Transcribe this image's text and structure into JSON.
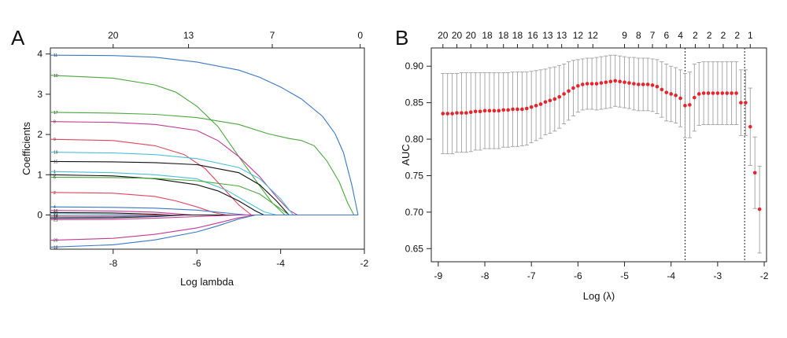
{
  "chart_data": [
    {
      "type": "line",
      "panel_label": "A",
      "xlabel": "Log lambda",
      "ylabel": "Coefficients",
      "xlim": [
        -9.5,
        -2.0
      ],
      "ylim": [
        -0.85,
        4.15
      ],
      "x_ticks": [
        -8,
        -6,
        -4,
        -2
      ],
      "y_ticks": [
        0,
        1,
        2,
        3,
        4
      ],
      "top_axis": {
        "positions": [
          -8,
          -6.2,
          -4.2,
          -2.1
        ],
        "labels": [
          "20",
          "13",
          "7",
          "0"
        ]
      },
      "grid": false,
      "legend": "none",
      "series": [
        {
          "name": "11",
          "color": "#3a78c5",
          "x": [
            -9.5,
            -8,
            -7,
            -6,
            -5,
            -4.5,
            -4,
            -3.5,
            -3,
            -2.7,
            -2.5,
            -2.3,
            -2.15
          ],
          "y": [
            3.97,
            3.96,
            3.92,
            3.8,
            3.6,
            3.42,
            3.18,
            2.88,
            2.45,
            2.02,
            1.55,
            0.75,
            0
          ]
        },
        {
          "name": "10",
          "color": "#4aa83c",
          "x": [
            -9.5,
            -8,
            -7,
            -6.5,
            -6,
            -5.5,
            -5,
            -4.5,
            -4.2,
            -3.9
          ],
          "y": [
            3.47,
            3.4,
            3.23,
            3.05,
            2.7,
            2.2,
            1.45,
            0.72,
            0.3,
            0
          ]
        },
        {
          "name": "17",
          "color": "#4aa83c",
          "x": [
            -9.5,
            -8,
            -7,
            -6,
            -5,
            -4.3,
            -3.8,
            -3.5,
            -3.2,
            -2.9,
            -2.6,
            -2.4,
            -2.25
          ],
          "y": [
            2.55,
            2.53,
            2.5,
            2.42,
            2.25,
            2.02,
            1.9,
            1.85,
            1.72,
            1.35,
            0.82,
            0.3,
            0
          ]
        },
        {
          "name": "8",
          "color": "#c23a93",
          "x": [
            -9.5,
            -8,
            -7,
            -6,
            -5.5,
            -5,
            -4.5,
            -4.1,
            -3.8,
            -3.6
          ],
          "y": [
            2.32,
            2.3,
            2.25,
            2.1,
            1.85,
            1.45,
            0.95,
            0.45,
            0.12,
            0
          ]
        },
        {
          "name": "9",
          "color": "#e0465a",
          "x": [
            -9.5,
            -8,
            -7,
            -6.3,
            -5.8,
            -5.4,
            -5.0,
            -4.7
          ],
          "y": [
            1.88,
            1.85,
            1.72,
            1.5,
            1.15,
            0.7,
            0.25,
            0
          ]
        },
        {
          "name": "19",
          "color": "#4cc0d8",
          "x": [
            -9.5,
            -8,
            -7,
            -6,
            -5,
            -4.5,
            -4.0,
            -3.7
          ],
          "y": [
            1.56,
            1.54,
            1.5,
            1.4,
            1.18,
            0.9,
            0.4,
            0
          ]
        },
        {
          "name": "15",
          "color": "#111111",
          "x": [
            -9.5,
            -8,
            -7,
            -6,
            -5,
            -4.5,
            -4.1,
            -3.8
          ],
          "y": [
            1.33,
            1.32,
            1.3,
            1.25,
            1.05,
            0.75,
            0.35,
            0
          ]
        },
        {
          "name": "1",
          "color": "#4cc0d8",
          "x": [
            -9.5,
            -8,
            -7,
            -6,
            -5.3,
            -4.8,
            -4.4,
            -4.1
          ],
          "y": [
            1.08,
            1.05,
            1.0,
            0.9,
            0.62,
            0.32,
            0.08,
            0
          ]
        },
        {
          "name": "3",
          "color": "#111111",
          "x": [
            -9.5,
            -8,
            -7,
            -6,
            -5.5,
            -5,
            -4.6,
            -4.4
          ],
          "y": [
            1.0,
            0.97,
            0.9,
            0.75,
            0.6,
            0.35,
            0.1,
            0
          ]
        },
        {
          "name": "5",
          "color": "#4aa83c",
          "x": [
            -9.5,
            -8,
            -7,
            -6,
            -5,
            -4.5,
            -4.0,
            -3.8
          ],
          "y": [
            0.94,
            0.93,
            0.91,
            0.85,
            0.72,
            0.52,
            0.15,
            0
          ]
        },
        {
          "name": "2",
          "color": "#e0465a",
          "x": [
            -9.5,
            -8,
            -7,
            -6.5,
            -6.0,
            -5.6,
            -5.3
          ],
          "y": [
            0.56,
            0.54,
            0.46,
            0.35,
            0.2,
            0.06,
            0
          ]
        },
        {
          "name": "4",
          "color": "#3a78c5",
          "x": [
            -9.5,
            -8,
            -7,
            -6,
            -5.5,
            -5.0,
            -4.8
          ],
          "y": [
            0.2,
            0.19,
            0.17,
            0.12,
            0.07,
            0.02,
            0
          ]
        },
        {
          "name": "16",
          "color": "#c23a93",
          "x": [
            -9.5,
            -8,
            -7,
            -6.5,
            -6.1
          ],
          "y": [
            0.11,
            0.1,
            0.07,
            0.03,
            0
          ]
        },
        {
          "name": "6",
          "color": "#111111",
          "x": [
            -9.5,
            -8,
            -7,
            -6.6
          ],
          "y": [
            0.06,
            0.05,
            0.02,
            0
          ]
        },
        {
          "name": "13",
          "color": "#4cc0d8",
          "x": [
            -9.5,
            -8,
            -7.2
          ],
          "y": [
            0.03,
            0.02,
            0
          ]
        },
        {
          "name": "14",
          "color": "#e0465a",
          "x": [
            -9.5,
            -8,
            -7.2
          ],
          "y": [
            -0.02,
            -0.015,
            0
          ]
        },
        {
          "name": "12",
          "color": "#3a78c5",
          "x": [
            -9.5,
            -8,
            -7,
            -6.3
          ],
          "y": [
            -0.05,
            -0.045,
            -0.02,
            0
          ]
        },
        {
          "name": "7",
          "color": "#111111",
          "x": [
            -9.5,
            -8,
            -7,
            -6.3
          ],
          "y": [
            -0.08,
            -0.07,
            -0.04,
            0
          ]
        },
        {
          "name": "21",
          "color": "#c23a93",
          "x": [
            -9.5,
            -8,
            -7,
            -6,
            -5.0
          ],
          "y": [
            -0.12,
            -0.11,
            -0.08,
            -0.04,
            0
          ]
        },
        {
          "name": "20",
          "color": "#c23a93",
          "x": [
            -9.5,
            -8,
            -7,
            -6,
            -5.5,
            -5.0,
            -4.6
          ],
          "y": [
            -0.63,
            -0.58,
            -0.48,
            -0.32,
            -0.2,
            -0.07,
            0
          ]
        },
        {
          "name": "18",
          "color": "#3a78c5",
          "x": [
            -9.5,
            -8,
            -7,
            -6,
            -5.5,
            -5.0,
            -4.6
          ],
          "y": [
            -0.8,
            -0.74,
            -0.62,
            -0.42,
            -0.27,
            -0.1,
            0
          ]
        }
      ]
    },
    {
      "type": "scatter",
      "panel_label": "B",
      "xlabel": "Log (λ)",
      "ylabel": "AUC",
      "xlim": [
        -9.15,
        -1.95
      ],
      "ylim": [
        0.632,
        0.925
      ],
      "x_ticks": [
        -9,
        -8,
        -7,
        -6,
        -5,
        -4,
        -3,
        -2
      ],
      "y_ticks": [
        0.65,
        0.7,
        0.75,
        0.8,
        0.85,
        0.9
      ],
      "y_tick_labels": [
        "0.65",
        "0.70",
        "0.75",
        "0.80",
        "0.85",
        "0.90"
      ],
      "top_axis": {
        "positions": [
          -8.9,
          -8.6,
          -8.3,
          -7.95,
          -7.6,
          -7.3,
          -6.97,
          -6.65,
          -6.35,
          -6.0,
          -5.68,
          -5.0,
          -4.7,
          -4.4,
          -4.1,
          -3.8,
          -3.48,
          -3.18,
          -2.88,
          -2.58,
          -2.3
        ],
        "labels": [
          "20",
          "20",
          "20",
          "18",
          "18",
          "18",
          "16",
          "13",
          "13",
          "12",
          "12",
          "9",
          "8",
          "7",
          "6",
          "4",
          "2",
          "2",
          "2",
          "2",
          "1"
        ]
      },
      "point_color": "#e8232a",
      "errorbar_color": "#a0a0a0",
      "vlines": [
        -3.7,
        -2.42
      ],
      "grid": false,
      "legend": "none",
      "x": [
        -8.9,
        -8.8,
        -8.7,
        -8.6,
        -8.5,
        -8.4,
        -8.3,
        -8.2,
        -8.1,
        -8.0,
        -7.9,
        -7.8,
        -7.7,
        -7.6,
        -7.5,
        -7.4,
        -7.3,
        -7.2,
        -7.1,
        -7.0,
        -6.9,
        -6.8,
        -6.7,
        -6.6,
        -6.5,
        -6.4,
        -6.3,
        -6.2,
        -6.1,
        -6.0,
        -5.9,
        -5.8,
        -5.7,
        -5.6,
        -5.5,
        -5.4,
        -5.3,
        -5.2,
        -5.1,
        -5.0,
        -4.9,
        -4.8,
        -4.7,
        -4.6,
        -4.5,
        -4.4,
        -4.3,
        -4.2,
        -4.1,
        -4.0,
        -3.9,
        -3.8,
        -3.7,
        -3.6,
        -3.5,
        -3.4,
        -3.3,
        -3.2,
        -3.1,
        -3.0,
        -2.9,
        -2.8,
        -2.7,
        -2.6,
        -2.5,
        -2.4,
        -2.3,
        -2.2,
        -2.1
      ],
      "auc": [
        0.835,
        0.835,
        0.835,
        0.836,
        0.836,
        0.836,
        0.837,
        0.838,
        0.838,
        0.839,
        0.839,
        0.839,
        0.839,
        0.84,
        0.84,
        0.841,
        0.841,
        0.841,
        0.842,
        0.844,
        0.846,
        0.848,
        0.851,
        0.853,
        0.855,
        0.858,
        0.862,
        0.866,
        0.87,
        0.873,
        0.875,
        0.876,
        0.876,
        0.876,
        0.877,
        0.878,
        0.879,
        0.88,
        0.879,
        0.878,
        0.877,
        0.876,
        0.875,
        0.875,
        0.875,
        0.874,
        0.872,
        0.868,
        0.864,
        0.862,
        0.86,
        0.856,
        0.846,
        0.847,
        0.857,
        0.862,
        0.863,
        0.863,
        0.863,
        0.863,
        0.863,
        0.863,
        0.863,
        0.863,
        0.85,
        0.85,
        0.817,
        0.754,
        0.704
      ],
      "upper": [
        0.89,
        0.89,
        0.89,
        0.89,
        0.891,
        0.891,
        0.891,
        0.891,
        0.891,
        0.891,
        0.891,
        0.891,
        0.891,
        0.891,
        0.891,
        0.892,
        0.892,
        0.892,
        0.892,
        0.893,
        0.894,
        0.895,
        0.896,
        0.898,
        0.899,
        0.901,
        0.903,
        0.906,
        0.908,
        0.909,
        0.91,
        0.911,
        0.911,
        0.912,
        0.913,
        0.914,
        0.915,
        0.915,
        0.914,
        0.913,
        0.912,
        0.912,
        0.911,
        0.911,
        0.911,
        0.91,
        0.909,
        0.906,
        0.903,
        0.9,
        0.898,
        0.895,
        0.89,
        0.892,
        0.903,
        0.905,
        0.906,
        0.906,
        0.906,
        0.906,
        0.906,
        0.906,
        0.906,
        0.906,
        0.895,
        0.895,
        0.87,
        0.803,
        0.763
      ],
      "lower": [
        0.78,
        0.78,
        0.78,
        0.782,
        0.782,
        0.782,
        0.783,
        0.785,
        0.785,
        0.787,
        0.787,
        0.787,
        0.787,
        0.789,
        0.789,
        0.79,
        0.79,
        0.791,
        0.792,
        0.795,
        0.798,
        0.801,
        0.806,
        0.808,
        0.811,
        0.815,
        0.821,
        0.826,
        0.832,
        0.837,
        0.84,
        0.841,
        0.841,
        0.84,
        0.841,
        0.842,
        0.843,
        0.845,
        0.844,
        0.843,
        0.842,
        0.84,
        0.839,
        0.839,
        0.839,
        0.838,
        0.835,
        0.83,
        0.825,
        0.824,
        0.822,
        0.817,
        0.802,
        0.802,
        0.811,
        0.819,
        0.82,
        0.82,
        0.82,
        0.82,
        0.82,
        0.82,
        0.82,
        0.82,
        0.805,
        0.805,
        0.764,
        0.705,
        0.644
      ]
    }
  ]
}
